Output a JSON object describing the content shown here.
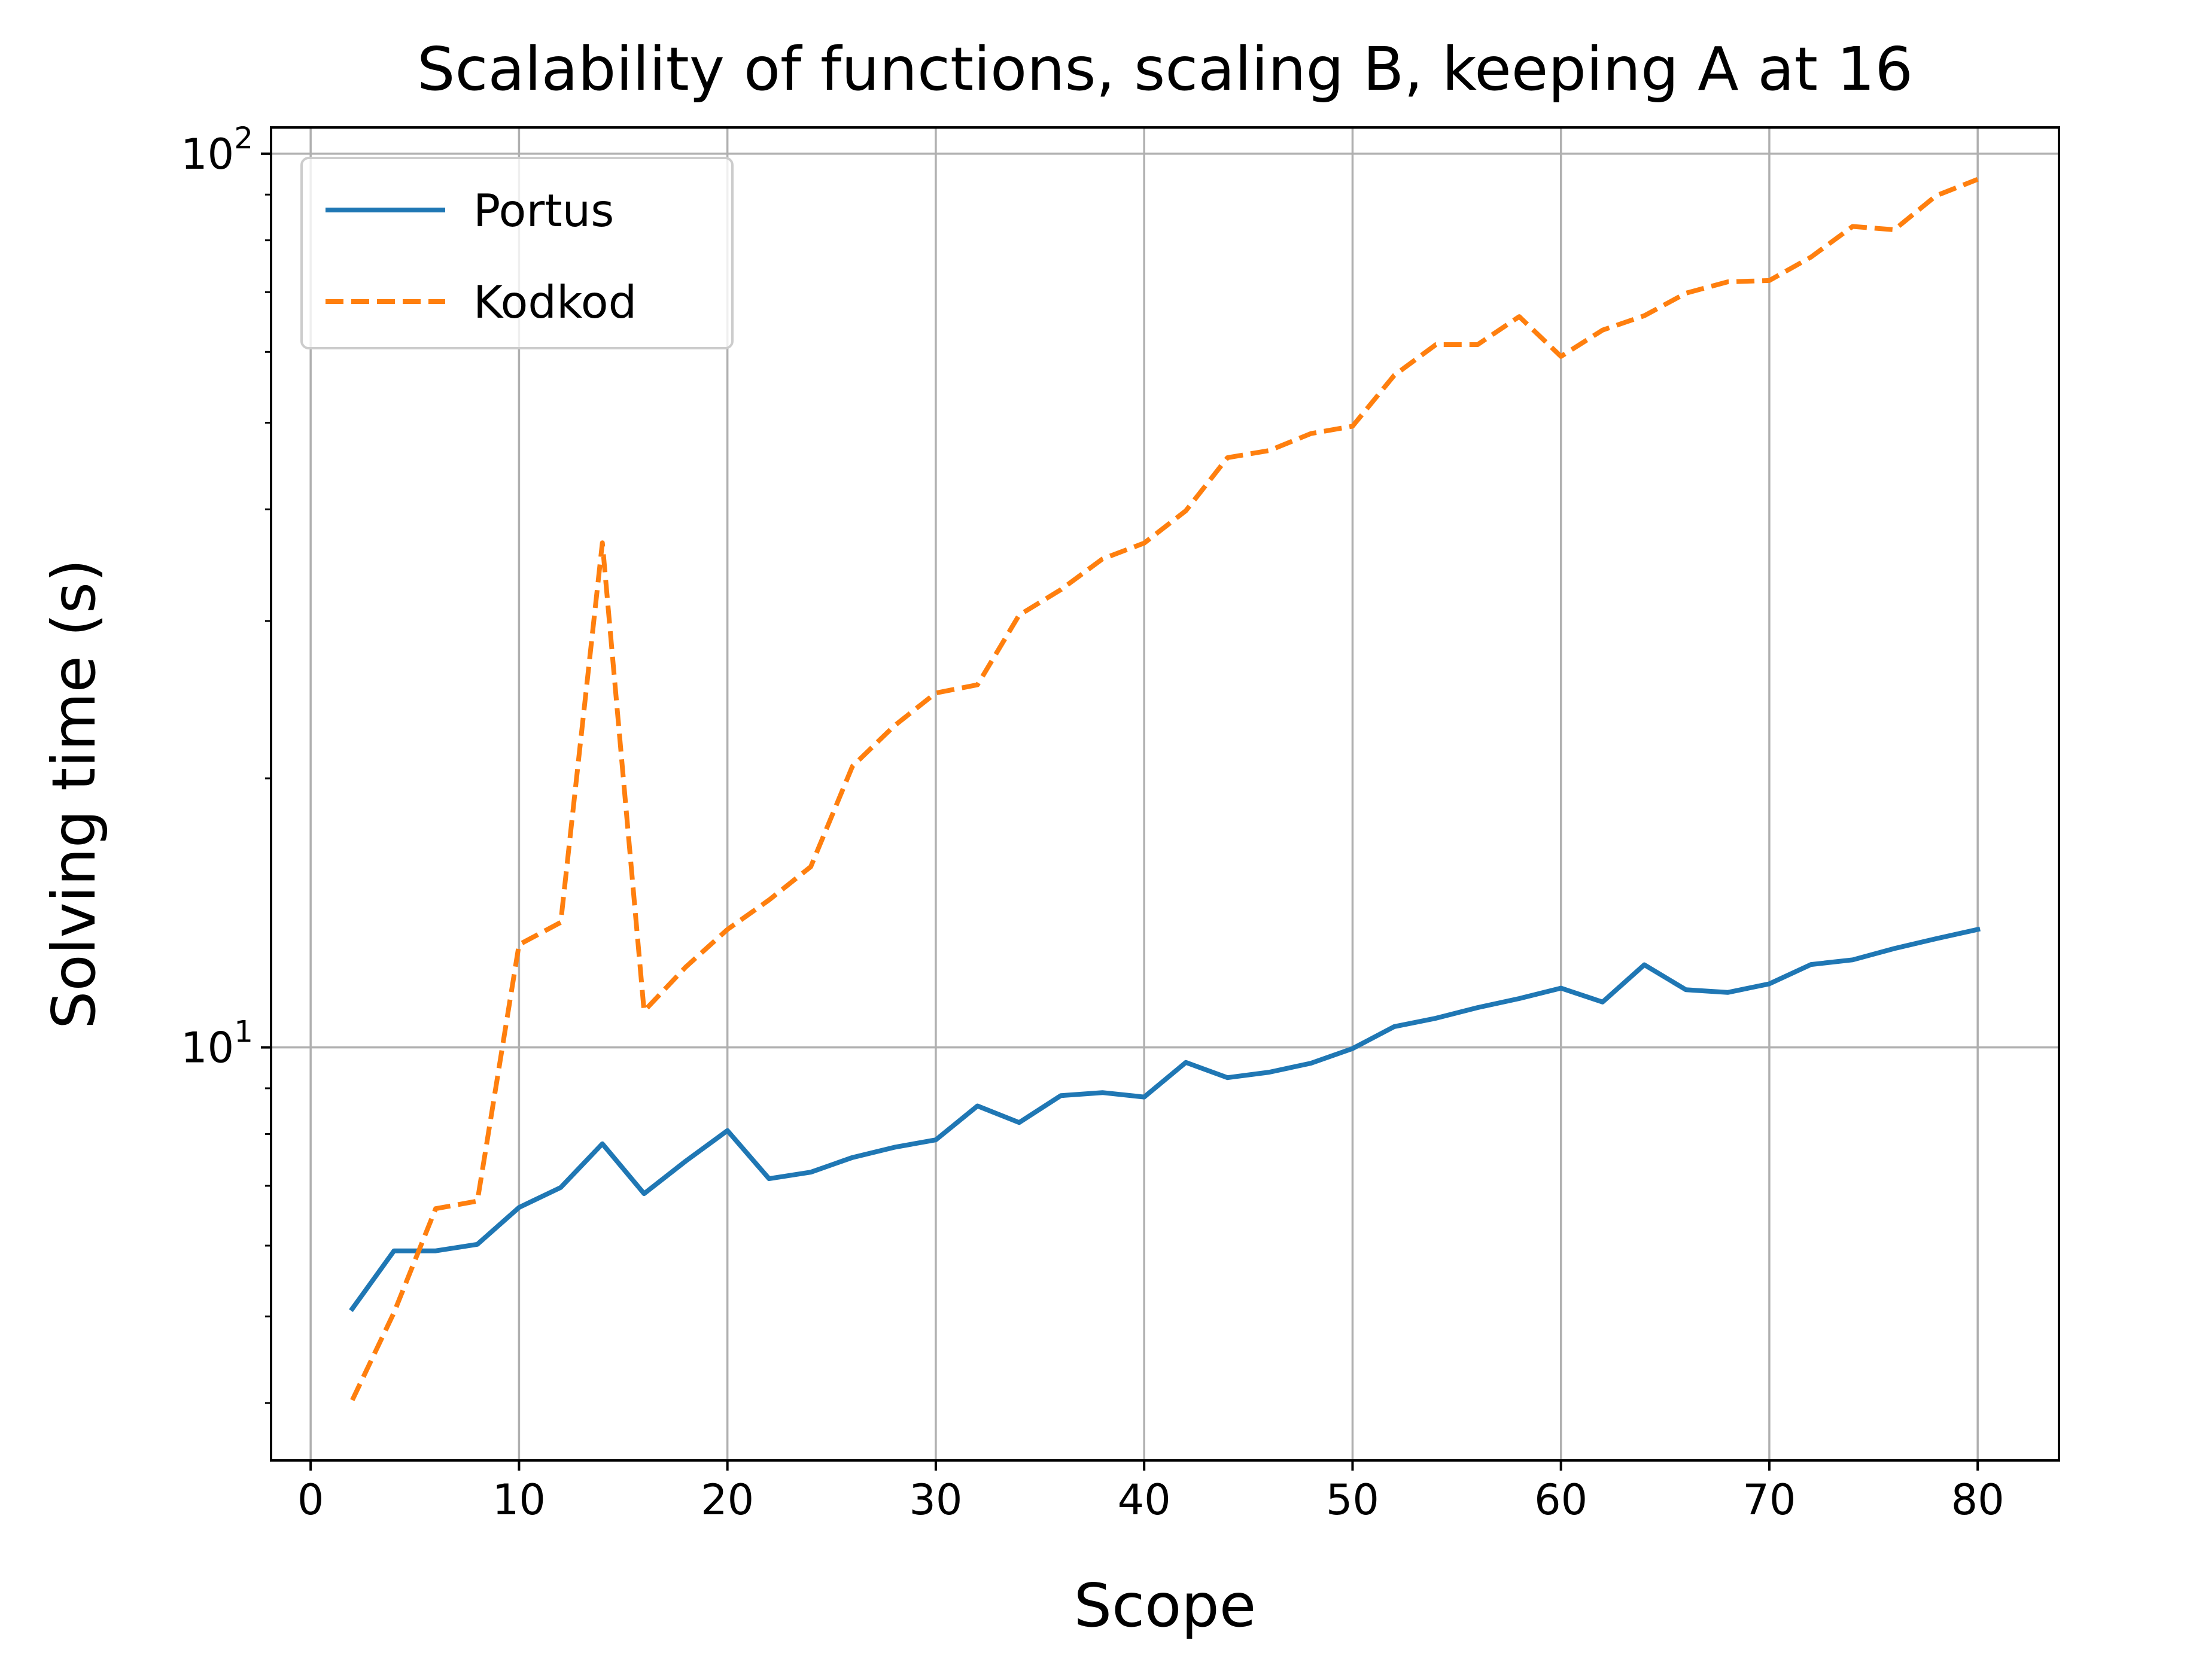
{
  "chart_data": {
    "type": "line",
    "title": "Scalability of functions, scaling B, keeping A at 16",
    "xlabel": "Scope",
    "ylabel": "Solving time (s)",
    "y_scale": "log",
    "xlim": [
      -1.9,
      83.9
    ],
    "ylim": [
      3.45,
      107
    ],
    "x_ticks": [
      0,
      10,
      20,
      30,
      40,
      50,
      60,
      70,
      80
    ],
    "y_major_ticks": [
      10,
      100
    ],
    "y_minor_ticks": [
      4,
      5,
      6,
      7,
      8,
      9,
      20,
      30,
      40,
      50,
      60,
      70,
      80,
      90
    ],
    "grid": true,
    "legend_position": "top-left",
    "x": [
      2,
      4,
      6,
      8,
      10,
      12,
      14,
      16,
      18,
      20,
      22,
      24,
      26,
      28,
      30,
      32,
      34,
      36,
      38,
      40,
      42,
      44,
      46,
      48,
      50,
      52,
      54,
      56,
      58,
      60,
      62,
      64,
      66,
      68,
      70,
      72,
      74,
      76,
      78,
      80
    ],
    "series": [
      {
        "name": "Portus",
        "color": "#1f77b4",
        "style": "solid",
        "values": [
          5.1,
          5.92,
          5.92,
          6.02,
          6.62,
          6.97,
          7.8,
          6.86,
          7.46,
          8.07,
          7.13,
          7.25,
          7.53,
          7.73,
          7.88,
          8.6,
          8.24,
          8.83,
          8.9,
          8.8,
          9.62,
          9.25,
          9.38,
          9.6,
          9.97,
          10.55,
          10.78,
          11.08,
          11.34,
          11.65,
          11.24,
          12.37,
          11.6,
          11.52,
          11.78,
          12.38,
          12.53,
          12.9,
          13.23,
          13.55
        ]
      },
      {
        "name": "Kodkod",
        "color": "#ff7f0e",
        "style": "dashed",
        "values": [
          4.03,
          5.05,
          6.6,
          6.73,
          13.03,
          13.8,
          36.7,
          10.98,
          12.3,
          13.55,
          14.62,
          15.93,
          20.63,
          22.89,
          24.92,
          25.45,
          30.46,
          32.52,
          35.2,
          36.67,
          39.85,
          45.7,
          46.54,
          48.62,
          49.55,
          56.5,
          61.15,
          61.15,
          65.72,
          59.32,
          63.48,
          65.87,
          69.81,
          71.88,
          72.12,
          76.61,
          82.9,
          82.21,
          89.73,
          93.62
        ]
      }
    ]
  }
}
